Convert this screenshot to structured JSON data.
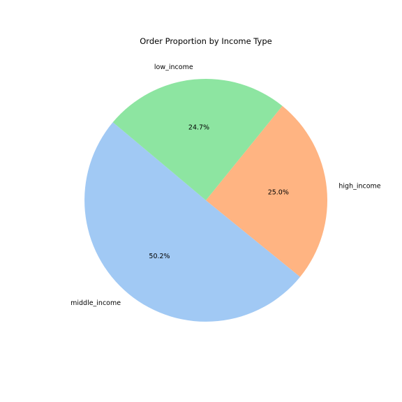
{
  "chart_data": {
    "type": "pie",
    "title": "Order Proportion by Income Type",
    "categories": [
      "middle_income",
      "high_income",
      "low_income"
    ],
    "values": [
      50.2,
      25.0,
      24.7
    ],
    "labels_pct": [
      "50.2%",
      "25.0%",
      "24.7%"
    ],
    "colors": [
      "#a1c9f4",
      "#ffb482",
      "#8de5a1"
    ],
    "legend": "none",
    "grid": false
  }
}
